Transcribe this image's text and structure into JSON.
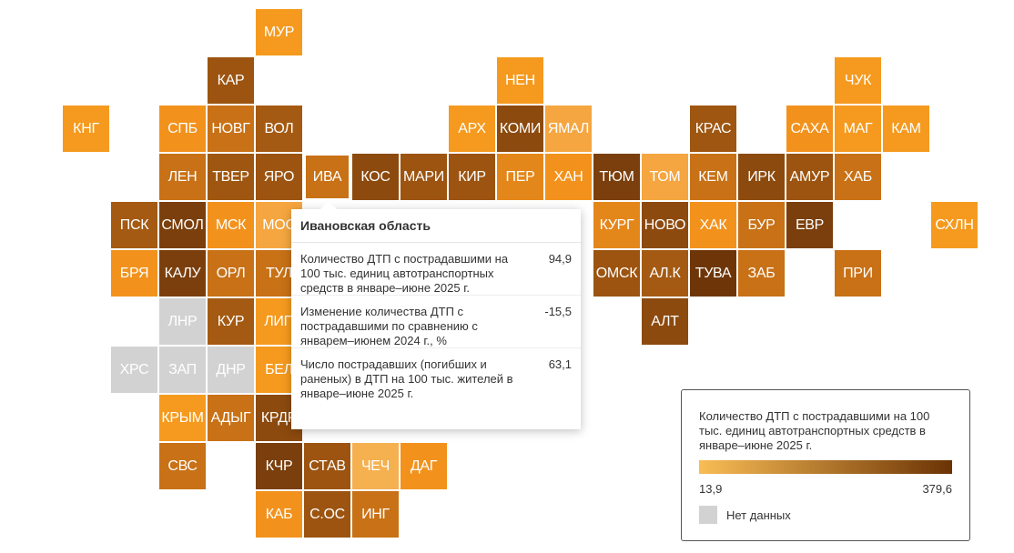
{
  "regions": [
    {
      "code": "МУР",
      "row": 0,
      "col": 5,
      "color": "#f59a1e"
    },
    {
      "code": "КАР",
      "row": 1,
      "col": 4,
      "color": "#9c5410"
    },
    {
      "code": "НЕН",
      "row": 1,
      "col": 10,
      "color": "#f59a1e"
    },
    {
      "code": "ЧУК",
      "row": 1,
      "col": 17,
      "color": "#f59a1e"
    },
    {
      "code": "КНГ",
      "row": 2,
      "col": 1,
      "color": "#f59a1e"
    },
    {
      "code": "СПБ",
      "row": 2,
      "col": 3,
      "color": "#f2921c"
    },
    {
      "code": "НОВГ",
      "row": 2,
      "col": 4,
      "color": "#c87116"
    },
    {
      "code": "ВОЛ",
      "row": 2,
      "col": 5,
      "color": "#a45a12"
    },
    {
      "code": "АРХ",
      "row": 2,
      "col": 9,
      "color": "#f59a1e"
    },
    {
      "code": "КОМИ",
      "row": 2,
      "col": 10,
      "color": "#8c4a0e"
    },
    {
      "code": "ЯМАЛ",
      "row": 2,
      "col": 11,
      "color": "#f5a640"
    },
    {
      "code": "КРАС",
      "row": 2,
      "col": 14,
      "color": "#9e5610"
    },
    {
      "code": "САХА",
      "row": 2,
      "col": 16,
      "color": "#f2921c"
    },
    {
      "code": "МАГ",
      "row": 2,
      "col": 17,
      "color": "#f59a1e"
    },
    {
      "code": "КАМ",
      "row": 2,
      "col": 18,
      "color": "#f59a1e"
    },
    {
      "code": "ЛЕН",
      "row": 3,
      "col": 3,
      "color": "#c87116"
    },
    {
      "code": "ТВЕР",
      "row": 3,
      "col": 4,
      "color": "#9e5610"
    },
    {
      "code": "ЯРО",
      "row": 3,
      "col": 5,
      "color": "#9c5410"
    },
    {
      "code": "ИВА",
      "row": 3,
      "col": 6,
      "color": "#c87116",
      "active": true
    },
    {
      "code": "КОС",
      "row": 3,
      "col": 7,
      "color": "#8c4a0e"
    },
    {
      "code": "МАРИ",
      "row": 3,
      "col": 8,
      "color": "#9c5410"
    },
    {
      "code": "КИР",
      "row": 3,
      "col": 9,
      "color": "#9c5410"
    },
    {
      "code": "ПЕР",
      "row": 3,
      "col": 10,
      "color": "#e4871a"
    },
    {
      "code": "ХАН",
      "row": 3,
      "col": 11,
      "color": "#f2921c"
    },
    {
      "code": "ТЮМ",
      "row": 3,
      "col": 12,
      "color": "#7a3f0c"
    },
    {
      "code": "ТОМ",
      "row": 3,
      "col": 13,
      "color": "#f5a640"
    },
    {
      "code": "КЕМ",
      "row": 3,
      "col": 14,
      "color": "#c87116"
    },
    {
      "code": "ИРК",
      "row": 3,
      "col": 15,
      "color": "#8c4a0e"
    },
    {
      "code": "АМУР",
      "row": 3,
      "col": 16,
      "color": "#9c5410"
    },
    {
      "code": "ХАБ",
      "row": 3,
      "col": 17,
      "color": "#c87116"
    },
    {
      "code": "ПСК",
      "row": 4,
      "col": 2,
      "color": "#a45a12"
    },
    {
      "code": "СМОЛ",
      "row": 4,
      "col": 3,
      "color": "#7a3f0c"
    },
    {
      "code": "МСК",
      "row": 4,
      "col": 4,
      "color": "#f2921c"
    },
    {
      "code": "МОС",
      "row": 4,
      "col": 5,
      "color": "#f5a640"
    },
    {
      "code": "КУРГ",
      "row": 4,
      "col": 12,
      "color": "#e4871a"
    },
    {
      "code": "НОВО",
      "row": 4,
      "col": 13,
      "color": "#8c4a0e"
    },
    {
      "code": "ХАК",
      "row": 4,
      "col": 14,
      "color": "#f2921c"
    },
    {
      "code": "БУР",
      "row": 4,
      "col": 15,
      "color": "#c87116"
    },
    {
      "code": "ЕВР",
      "row": 4,
      "col": 16,
      "color": "#7a3f0c"
    },
    {
      "code": "СХЛН",
      "row": 4,
      "col": 19,
      "color": "#f59a1e"
    },
    {
      "code": "БРЯ",
      "row": 5,
      "col": 2,
      "color": "#f2921c"
    },
    {
      "code": "КАЛУ",
      "row": 5,
      "col": 3,
      "color": "#7a3f0c"
    },
    {
      "code": "ОРЛ",
      "row": 5,
      "col": 4,
      "color": "#c87116"
    },
    {
      "code": "ТУЛ",
      "row": 5,
      "col": 5,
      "color": "#c87116"
    },
    {
      "code": "ОМСК",
      "row": 5,
      "col": 12,
      "color": "#9c5410"
    },
    {
      "code": "АЛ.К",
      "row": 5,
      "col": 13,
      "color": "#a45a12"
    },
    {
      "code": "ТУВА",
      "row": 5,
      "col": 14,
      "color": "#6e3608"
    },
    {
      "code": "ЗАБ",
      "row": 5,
      "col": 15,
      "color": "#c87116"
    },
    {
      "code": "ПРИ",
      "row": 5,
      "col": 17,
      "color": "#c87116"
    },
    {
      "code": "ЛНР",
      "row": 6,
      "col": 3,
      "color": "#d2d2d2"
    },
    {
      "code": "КУР",
      "row": 6,
      "col": 4,
      "color": "#a45a12"
    },
    {
      "code": "ЛИП",
      "row": 6,
      "col": 5,
      "color": "#f59a1e"
    },
    {
      "code": "АЛТ",
      "row": 6,
      "col": 13,
      "color": "#8c4a0e"
    },
    {
      "code": "ХРС",
      "row": 7,
      "col": 2,
      "color": "#d2d2d2"
    },
    {
      "code": "ЗАП",
      "row": 7,
      "col": 3,
      "color": "#d2d2d2"
    },
    {
      "code": "ДНР",
      "row": 7,
      "col": 4,
      "color": "#d2d2d2"
    },
    {
      "code": "БЕЛ",
      "row": 7,
      "col": 5,
      "color": "#f59a1e"
    },
    {
      "code": "КРЫМ",
      "row": 8,
      "col": 3,
      "color": "#f59a1e"
    },
    {
      "code": "АДЫГ",
      "row": 8,
      "col": 4,
      "color": "#c87116"
    },
    {
      "code": "КРДР",
      "row": 8,
      "col": 5,
      "color": "#8c4a0e"
    },
    {
      "code": "СВС",
      "row": 9,
      "col": 3,
      "color": "#c87116"
    },
    {
      "code": "КЧР",
      "row": 9,
      "col": 5,
      "color": "#7a3f0c"
    },
    {
      "code": "СТАВ",
      "row": 9,
      "col": 6,
      "color": "#9c5410"
    },
    {
      "code": "ЧЕЧ",
      "row": 9,
      "col": 7,
      "color": "#f5b050"
    },
    {
      "code": "ДАГ",
      "row": 9,
      "col": 8,
      "color": "#f2921c"
    },
    {
      "code": "КАБ",
      "row": 10,
      "col": 5,
      "color": "#f2921c"
    },
    {
      "code": "С.ОС",
      "row": 10,
      "col": 6,
      "color": "#9c5410"
    },
    {
      "code": "ИНГ",
      "row": 10,
      "col": 7,
      "color": "#c87116"
    }
  ],
  "tooltip": {
    "title": "Ивановская область",
    "rows": [
      {
        "label": "Количество ДТП с пострадавшими на 100 тыс. единиц автотранспортных средств в январе–июне 2025 г.",
        "value": "94,9"
      },
      {
        "label": "Изменение количества ДТП с пострадавшими по сравнению с январем–июнем 2024 г., %",
        "value": "-15,5"
      },
      {
        "label": "Число пострадавших (погибших и раненых) в ДТП на 100 тыс. жителей в январе–июне 2025 г.",
        "value": "63,1"
      }
    ]
  },
  "legend": {
    "title": "Количество ДТП с пострадавшими на 100 тыс. единиц автотранспортных средств в январе–июне 2025 г.",
    "min": "13,9",
    "max": "379,6",
    "no_data_label": "Нет данных",
    "gradient_start": "#f9bd55",
    "gradient_end": "#6b3305",
    "no_data_color": "#d2d2d2"
  }
}
